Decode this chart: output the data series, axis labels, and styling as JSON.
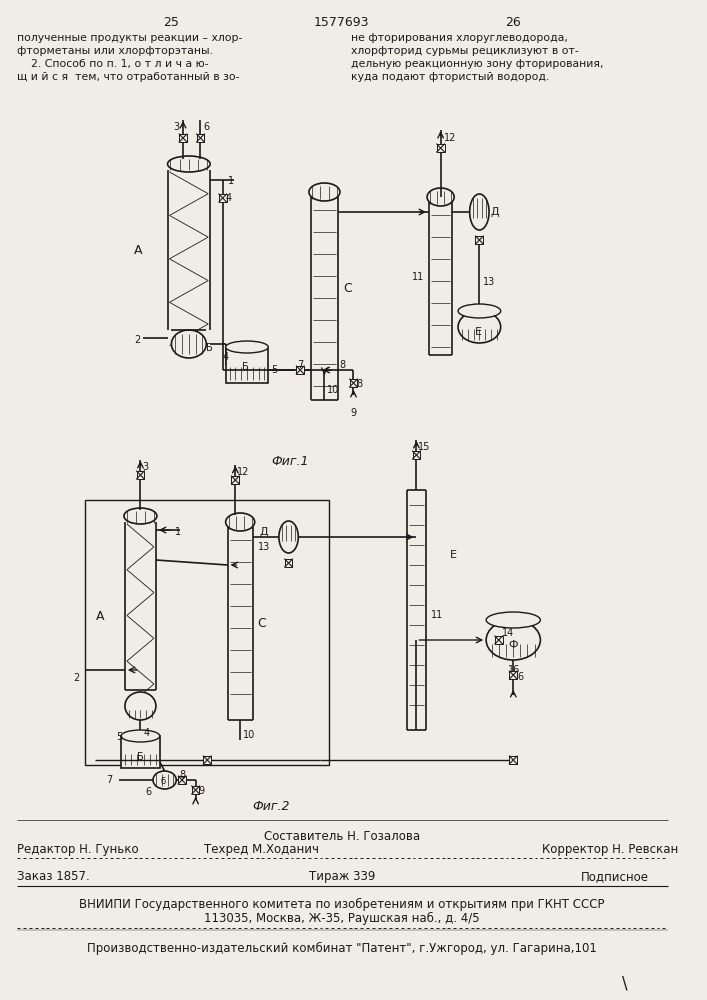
{
  "bg_color": "#f0ede6",
  "page_num_left": "25",
  "page_num_center": "1577693",
  "page_num_right": "26",
  "text_left": [
    "полученные продукты реакции – хлор-",
    "фторметаны или хлорфторэтаны.",
    "    2. Способ по п. 1, о т л и ч а ю-",
    "щ и й с я  тем, что отработанный в зо-"
  ],
  "text_right": [
    "не фторирования хлоруглеводорода,",
    "хлорфторид сурьмы рециклизуют в от-",
    "дельную реакционную зону фторирования,",
    "куда подают фтористый водород."
  ],
  "fig1_caption": "Фиг.1",
  "fig2_caption": "Фиг.2",
  "footer_line1_left": "Редактор Н. Гунько",
  "footer_line1_center": "Составитель Н. Гозалова",
  "footer_line2_center": "Техред М.Ходанич",
  "footer_line2_right": "Корректор Н. Ревскан",
  "footer_line3_left": "Заказ 1857.",
  "footer_line3_center": "Тираж 339",
  "footer_line3_right": "Подписное",
  "footer_line4": "ВНИИПИ Государственного комитета по изобретениям и открытиям при ГКНТ СССР",
  "footer_line5": "113035, Москва, Ж-35, Раушская наб., д. 4/5",
  "footer_line6": "Производственно-издательский комбинат \"Патент\", г.Ужгород, ул. Гагарина,101",
  "line_color": "#1a1a1a",
  "text_color": "#1a1a1a"
}
